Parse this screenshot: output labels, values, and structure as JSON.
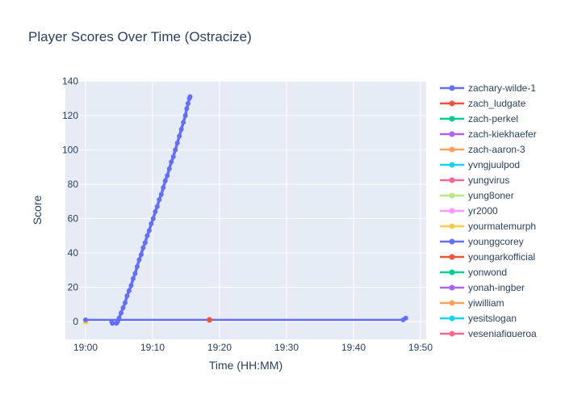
{
  "figure": {
    "title": "Player Scores Over Time (Ostracize)",
    "colors": {
      "title_text": "#2a3f5f",
      "tick_text": "#2a3f5f",
      "plot_bg": "#e5ecf6",
      "grid": "#ffffff",
      "paper_bg": "#ffffff"
    }
  },
  "chart_data": {
    "type": "line",
    "title": "Player Scores Over Time (Ostracize)",
    "xlabel": "Time (HH:MM)",
    "ylabel": "Score",
    "grid": true,
    "legend_position": "right",
    "x_ticks": [
      {
        "t": 0,
        "label": "19:00"
      },
      {
        "t": 10,
        "label": "19:10"
      },
      {
        "t": 20,
        "label": "19:20"
      },
      {
        "t": 30,
        "label": "19:30"
      },
      {
        "t": 40,
        "label": "19:40"
      },
      {
        "t": 50,
        "label": "19:50"
      }
    ],
    "y_ticks": [
      0,
      20,
      40,
      60,
      80,
      100,
      120,
      140
    ],
    "x_range_minutes_after_1900": [
      -3.0,
      50.8
    ],
    "ylim": [
      -10.4,
      140.2
    ],
    "series": [
      {
        "name": "zachary-wilde-1",
        "color": "#636efa",
        "mode": "lines+markers",
        "line_width": 3.5,
        "marker_size": 3,
        "points": [
          [
            3.9,
            0
          ],
          [
            4.0,
            -1
          ],
          [
            4.6,
            -1
          ],
          [
            4.8,
            0
          ],
          [
            5.0,
            2
          ],
          [
            5.3,
            5
          ],
          [
            5.6,
            8
          ],
          [
            5.9,
            11
          ],
          [
            6.2,
            15
          ],
          [
            6.5,
            18
          ],
          [
            6.8,
            21
          ],
          [
            7.1,
            25
          ],
          [
            7.4,
            28
          ],
          [
            7.7,
            32
          ],
          [
            8.0,
            36
          ],
          [
            8.3,
            39
          ],
          [
            8.6,
            43
          ],
          [
            8.9,
            46
          ],
          [
            9.2,
            50
          ],
          [
            9.5,
            53
          ],
          [
            9.8,
            57
          ],
          [
            10.1,
            60
          ],
          [
            10.4,
            64
          ],
          [
            10.7,
            67
          ],
          [
            11.0,
            71
          ],
          [
            11.3,
            74
          ],
          [
            11.6,
            78
          ],
          [
            11.9,
            82
          ],
          [
            12.2,
            85
          ],
          [
            12.5,
            89
          ],
          [
            12.8,
            93
          ],
          [
            13.1,
            96
          ],
          [
            13.4,
            100
          ],
          [
            13.7,
            104
          ],
          [
            14.0,
            108
          ],
          [
            14.3,
            112
          ],
          [
            14.6,
            116
          ],
          [
            14.9,
            120
          ],
          [
            15.1,
            124
          ],
          [
            15.3,
            127
          ],
          [
            15.5,
            130
          ],
          [
            15.6,
            131
          ]
        ]
      },
      {
        "name": "zach_ludgate",
        "color": "#ef553b",
        "mode": "lines+markers",
        "line_width": 2.5,
        "marker_size": 3.5,
        "points": []
      },
      {
        "name": "zach-perkel",
        "color": "#00cc96",
        "mode": "lines+markers",
        "line_width": 2.5,
        "marker_size": 3.5,
        "points": []
      },
      {
        "name": "zach-kiekhaefer",
        "color": "#ab63fa",
        "mode": "lines+markers",
        "line_width": 2.5,
        "marker_size": 3.5,
        "points": []
      },
      {
        "name": "zach-aaron-3",
        "color": "#ffa15a",
        "mode": "lines+markers",
        "line_width": 2.5,
        "marker_size": 3.5,
        "points": [
          [
            0,
            0
          ]
        ]
      },
      {
        "name": "yvngjuulpod",
        "color": "#19d3f3",
        "mode": "lines+markers",
        "line_width": 2.5,
        "marker_size": 3.5,
        "points": []
      },
      {
        "name": "yungvirus",
        "color": "#ff6692",
        "mode": "lines+markers",
        "line_width": 2.5,
        "marker_size": 3.5,
        "points": []
      },
      {
        "name": "yung8oner",
        "color": "#b6e880",
        "mode": "lines+markers",
        "line_width": 2.5,
        "marker_size": 3.5,
        "points": []
      },
      {
        "name": "yr2000",
        "color": "#ff97ff",
        "mode": "lines+markers",
        "line_width": 2.5,
        "marker_size": 3.5,
        "points": []
      },
      {
        "name": "yourmatemurph",
        "color": "#fecb52",
        "mode": "lines+markers",
        "line_width": 2.5,
        "marker_size": 3.5,
        "points": [
          [
            0,
            0
          ]
        ]
      },
      {
        "name": "younggcorey",
        "color": "#636efa",
        "mode": "lines+markers",
        "line_width": 2.5,
        "marker_size": 3,
        "points": [
          [
            0,
            1
          ],
          [
            47.4,
            1
          ],
          [
            47.8,
            2
          ]
        ]
      },
      {
        "name": "youngarkofficial",
        "color": "#ef553b",
        "mode": "lines+markers",
        "line_width": 2.5,
        "marker_size": 3.5,
        "points": [
          [
            18.5,
            1
          ]
        ]
      },
      {
        "name": "yonwond",
        "color": "#00cc96",
        "mode": "lines+markers",
        "line_width": 2.5,
        "marker_size": 3.5,
        "points": []
      },
      {
        "name": "yonah-ingber",
        "color": "#ab63fa",
        "mode": "lines+markers",
        "line_width": 2.5,
        "marker_size": 3.5,
        "points": []
      },
      {
        "name": "yiwilliam",
        "color": "#ffa15a",
        "mode": "lines+markers",
        "line_width": 2.5,
        "marker_size": 3.5,
        "points": []
      },
      {
        "name": "yesitslogan",
        "color": "#19d3f3",
        "mode": "lines+markers",
        "line_width": 2.5,
        "marker_size": 3.5,
        "points": []
      },
      {
        "name": "yeseniafigueroa",
        "color": "#ff6692",
        "mode": "lines+markers",
        "line_width": 2.5,
        "marker_size": 3.5,
        "points": []
      }
    ]
  }
}
